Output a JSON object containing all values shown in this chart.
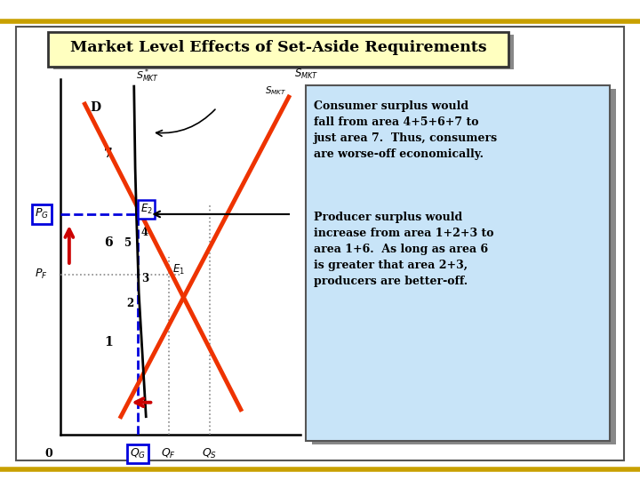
{
  "title": "Market Level Effects of Set-Aside Requirements",
  "bg_outer": "#FFFFFF",
  "bg_slide": "#FFFFFF",
  "gold_line": "#C8A000",
  "title_bg": "#FFFFC0",
  "title_border": "#333333",
  "box_bg": "#C8E4F8",
  "box_border": "#555555",
  "box_shadow": "#888888",
  "graph_bg": "#FFFFFF",
  "orange": "#EE3300",
  "blue_dash": "#0000DD",
  "gray_dot": "#888888",
  "black": "#000000",
  "red_arrow": "#CC0000",
  "box_text_1": "Consumer surplus would\nfall from area 4+5+6+7 to\njust area 7.  Thus, consumers\nare worse-off economically.",
  "box_text_2": "Producer surplus would\nincrease from area 1+2+3 to\narea 1+6.  As long as area 6\nis greater that area 2+3,\nproducers are better-off.",
  "Pa": 6.2,
  "PF": 4.5,
  "Qc": 3.2,
  "QF": 4.5,
  "Qs": 6.2,
  "E1x": 4.5,
  "E1y": 4.5,
  "E2x": 3.2,
  "E2y": 6.2
}
